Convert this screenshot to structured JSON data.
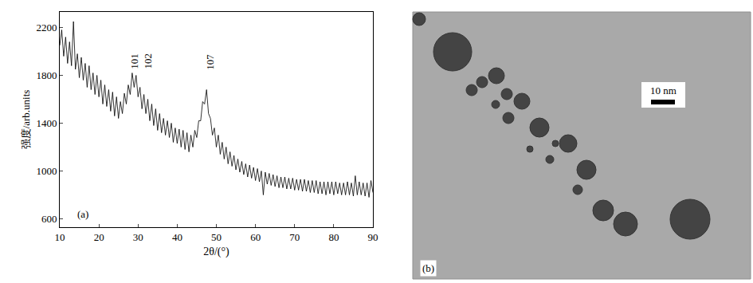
{
  "chart_data": [
    {
      "type": "line",
      "panel_label": "(a)",
      "x_label": "2θ/(°)",
      "y_label": "强度/arb.units",
      "color": "#000000",
      "xlim": [
        10,
        90
      ],
      "xticks": [
        10,
        20,
        30,
        40,
        50,
        60,
        70,
        80,
        90
      ],
      "ylim": [
        530,
        2330
      ],
      "yticks": [
        600,
        1000,
        1400,
        1800,
        2200
      ],
      "annotations": [
        {
          "text": "101",
          "x": 29,
          "y": 1840
        },
        {
          "text": "102",
          "x": 32.4,
          "y": 1840
        },
        {
          "text": "107",
          "x": 48.4,
          "y": 1830
        }
      ],
      "x": [
        10,
        10.5,
        11,
        11.5,
        12,
        12.5,
        13,
        13.5,
        14,
        14.5,
        15,
        15.5,
        16,
        16.5,
        17,
        17.5,
        18,
        18.5,
        19,
        19.5,
        20,
        20.5,
        21,
        21.5,
        22,
        22.5,
        23,
        23.5,
        24,
        24.5,
        25,
        25.5,
        26,
        26.5,
        27,
        27.5,
        28,
        28.5,
        29,
        29.5,
        30,
        30.5,
        31,
        31.5,
        32,
        32.5,
        33,
        33.5,
        34,
        34.5,
        35,
        35.5,
        36,
        36.5,
        37,
        37.5,
        38,
        38.5,
        39,
        39.5,
        40,
        40.5,
        41,
        41.5,
        42,
        42.5,
        43,
        43.5,
        44,
        44.5,
        45,
        45.5,
        46,
        46.5,
        47,
        47.5,
        48,
        48.5,
        49,
        49.5,
        50,
        50.5,
        51,
        51.5,
        52,
        52.5,
        53,
        53.5,
        54,
        54.5,
        55,
        55.5,
        56,
        56.5,
        57,
        57.5,
        58,
        58.5,
        59,
        59.5,
        60,
        60.5,
        61,
        61.5,
        62,
        62.5,
        63,
        63.5,
        64,
        64.5,
        65,
        65.5,
        66,
        66.5,
        67,
        67.5,
        68,
        68.5,
        69,
        69.5,
        70,
        70.5,
        71,
        71.5,
        72,
        72.5,
        73,
        73.5,
        74,
        74.5,
        75,
        75.5,
        76,
        76.5,
        77,
        77.5,
        78,
        78.5,
        79,
        79.5,
        80,
        80.5,
        81,
        81.5,
        82,
        82.5,
        83,
        83.5,
        84,
        84.5,
        85,
        85.5,
        86,
        86.5,
        87,
        87.5,
        88,
        88.5,
        89,
        89.5,
        90
      ],
      "values": [
        2050,
        2180,
        1960,
        2120,
        1900,
        2080,
        1880,
        2250,
        1850,
        1980,
        1780,
        1950,
        1760,
        1900,
        1700,
        1880,
        1680,
        1820,
        1640,
        1800,
        1620,
        1760,
        1560,
        1720,
        1540,
        1680,
        1500,
        1660,
        1460,
        1620,
        1440,
        1580,
        1480,
        1650,
        1560,
        1720,
        1640,
        1820,
        1700,
        1800,
        1620,
        1700,
        1520,
        1640,
        1480,
        1600,
        1420,
        1560,
        1380,
        1520,
        1340,
        1480,
        1320,
        1440,
        1300,
        1420,
        1280,
        1400,
        1240,
        1360,
        1230,
        1350,
        1200,
        1340,
        1180,
        1320,
        1160,
        1300,
        1200,
        1340,
        1280,
        1420,
        1420,
        1580,
        1560,
        1680,
        1480,
        1440,
        1300,
        1360,
        1200,
        1300,
        1140,
        1240,
        1100,
        1200,
        1060,
        1160,
        1040,
        1130,
        1010,
        1100,
        990,
        1080,
        970,
        1060,
        950,
        1050,
        940,
        1030,
        920,
        1020,
        910,
        1000,
        800,
        990,
        890,
        980,
        880,
        970,
        870,
        960,
        860,
        950,
        860,
        950,
        850,
        940,
        850,
        940,
        840,
        930,
        840,
        930,
        830,
        930,
        830,
        920,
        820,
        920,
        820,
        920,
        810,
        910,
        810,
        910,
        800,
        910,
        810,
        910,
        800,
        910,
        810,
        900,
        800,
        900,
        800,
        910,
        800,
        900,
        790,
        960,
        800,
        910,
        800,
        900,
        790,
        900,
        780,
        920,
        820
      ]
    },
    {
      "type": "image",
      "panel_label": "(b)",
      "scale_bar": "10 nm"
    }
  ]
}
